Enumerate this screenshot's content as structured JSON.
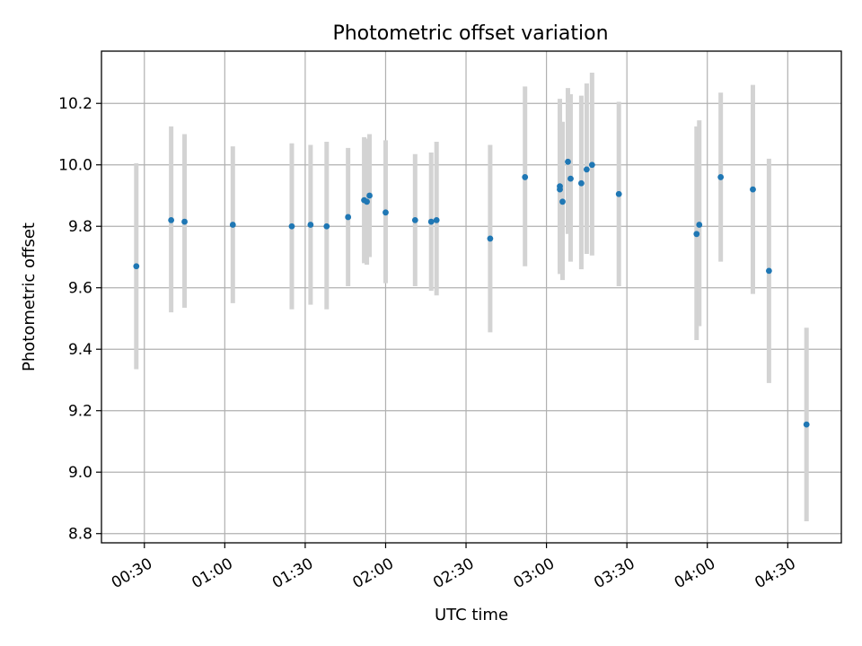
{
  "chart_data": {
    "type": "scatter",
    "title": "Photometric offset variation",
    "xlabel": "UTC time",
    "ylabel": "Photometric offset",
    "xlim": [
      "00:14",
      "04:50"
    ],
    "ylim": [
      8.77,
      10.37
    ],
    "grid": true,
    "x_ticks": [
      "00:30",
      "01:00",
      "01:30",
      "02:00",
      "02:30",
      "03:00",
      "03:30",
      "04:00",
      "04:30"
    ],
    "y_ticks": [
      "8.8",
      "9.0",
      "9.2",
      "9.4",
      "9.6",
      "9.8",
      "10.0",
      "10.2"
    ],
    "colors": {
      "point": "#1f77b4",
      "errorbar": "#d3d3d3"
    },
    "series": [
      {
        "points": [
          {
            "x": "00:27",
            "y": 9.67,
            "lo": 9.335,
            "hi": 10.005
          },
          {
            "x": "00:40",
            "y": 9.82,
            "lo": 9.52,
            "hi": 10.125
          },
          {
            "x": "00:45",
            "y": 9.815,
            "lo": 9.535,
            "hi": 10.1
          },
          {
            "x": "01:03",
            "y": 9.805,
            "lo": 9.55,
            "hi": 10.06
          },
          {
            "x": "01:25",
            "y": 9.8,
            "lo": 9.53,
            "hi": 10.07
          },
          {
            "x": "01:32",
            "y": 9.805,
            "lo": 9.545,
            "hi": 10.065
          },
          {
            "x": "01:38",
            "y": 9.8,
            "lo": 9.53,
            "hi": 10.075
          },
          {
            "x": "01:46",
            "y": 9.83,
            "lo": 9.605,
            "hi": 10.055
          },
          {
            "x": "01:52",
            "y": 9.885,
            "lo": 9.68,
            "hi": 10.09
          },
          {
            "x": "01:53",
            "y": 9.88,
            "lo": 9.675,
            "hi": 10.085
          },
          {
            "x": "01:54",
            "y": 9.9,
            "lo": 9.7,
            "hi": 10.1
          },
          {
            "x": "02:00",
            "y": 9.845,
            "lo": 9.615,
            "hi": 10.08
          },
          {
            "x": "02:11",
            "y": 9.82,
            "lo": 9.605,
            "hi": 10.035
          },
          {
            "x": "02:17",
            "y": 9.815,
            "lo": 9.59,
            "hi": 10.04
          },
          {
            "x": "02:19",
            "y": 9.82,
            "lo": 9.575,
            "hi": 10.075
          },
          {
            "x": "02:39",
            "y": 9.76,
            "lo": 9.455,
            "hi": 10.065
          },
          {
            "x": "02:52",
            "y": 9.96,
            "lo": 9.67,
            "hi": 10.255
          },
          {
            "x": "03:05",
            "y": 9.93,
            "lo": 9.645,
            "hi": 10.215
          },
          {
            "x": "03:05",
            "y": 9.92,
            "lo": 9.655,
            "hi": 10.19
          },
          {
            "x": "03:06",
            "y": 9.88,
            "lo": 9.625,
            "hi": 10.14
          },
          {
            "x": "03:08",
            "y": 10.01,
            "lo": 9.775,
            "hi": 10.25
          },
          {
            "x": "03:09",
            "y": 9.955,
            "lo": 9.685,
            "hi": 10.23
          },
          {
            "x": "03:13",
            "y": 9.94,
            "lo": 9.66,
            "hi": 10.225
          },
          {
            "x": "03:15",
            "y": 9.985,
            "lo": 9.71,
            "hi": 10.265
          },
          {
            "x": "03:17",
            "y": 10.0,
            "lo": 9.705,
            "hi": 10.3
          },
          {
            "x": "03:27",
            "y": 9.905,
            "lo": 9.605,
            "hi": 10.205
          },
          {
            "x": "03:56",
            "y": 9.775,
            "lo": 9.43,
            "hi": 10.125
          },
          {
            "x": "03:57",
            "y": 9.805,
            "lo": 9.475,
            "hi": 10.145
          },
          {
            "x": "04:05",
            "y": 9.96,
            "lo": 9.685,
            "hi": 10.235
          },
          {
            "x": "04:17",
            "y": 9.92,
            "lo": 9.58,
            "hi": 10.26
          },
          {
            "x": "04:23",
            "y": 9.655,
            "lo": 9.29,
            "hi": 10.02
          },
          {
            "x": "04:37",
            "y": 9.155,
            "lo": 8.84,
            "hi": 9.47
          }
        ]
      }
    ]
  }
}
